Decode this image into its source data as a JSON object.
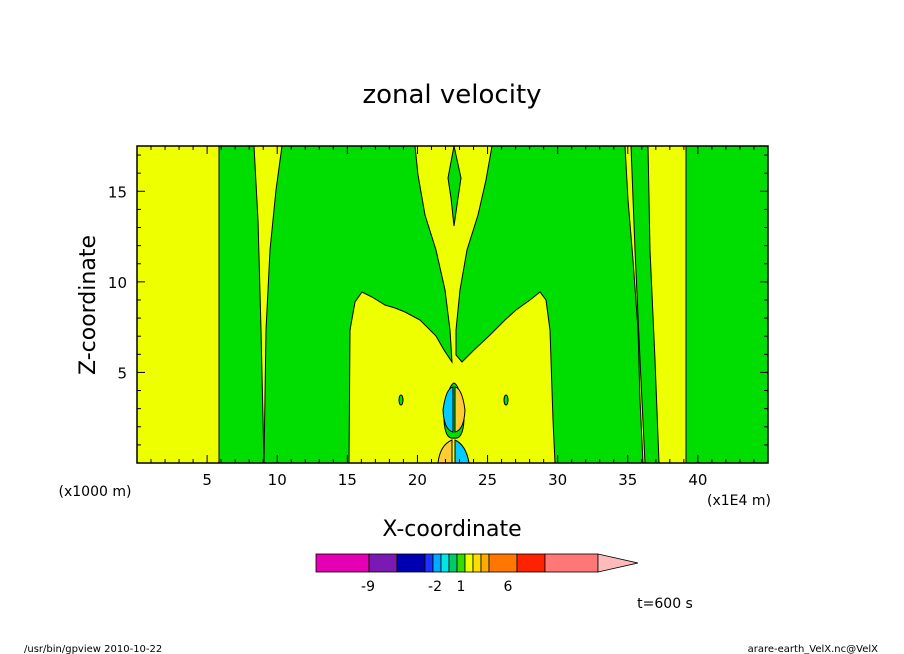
{
  "chart_data": {
    "type": "contour",
    "title": "zonal velocity",
    "xlabel": "X-coordinate",
    "ylabel": "Z-coordinate",
    "x_unit_label": "(x1E4 m)",
    "y_unit_label": "(x1000 m)",
    "xlim": [
      0,
      45
    ],
    "ylim": [
      0,
      17.5
    ],
    "x_ticks": [
      "5",
      "10",
      "15",
      "20",
      "25",
      "30",
      "35",
      "40"
    ],
    "y_ticks": [
      "5",
      "10",
      "15"
    ],
    "regions": [
      {
        "fill": "#eeff00",
        "level_range": "0 to 1",
        "description": "background"
      },
      {
        "fill": "#00dd00",
        "level_range": "-1 to 0"
      },
      {
        "fill": "#00ccff",
        "level_range": "-2 to -1"
      },
      {
        "fill": "#ffcc33",
        "level_range": "1 to 2"
      }
    ],
    "colorbar": {
      "tick_labels": [
        "-9",
        "-2",
        "1",
        "6"
      ],
      "colors": [
        "#e600b3",
        "#7a1ab3",
        "#0000b3",
        "#1a33ff",
        "#00aaff",
        "#00e6e6",
        "#00cc66",
        "#33dd00",
        "#eeff00",
        "#ffdd00",
        "#ffaa00",
        "#ff7700",
        "#ff2200",
        "#ff7777",
        "#ffbbbb"
      ]
    },
    "annotation": "t=600 s"
  },
  "footer": {
    "left": "/usr/bin/gpview  2010-10-22",
    "right": "arare-earth_VelX.nc@VelX"
  }
}
